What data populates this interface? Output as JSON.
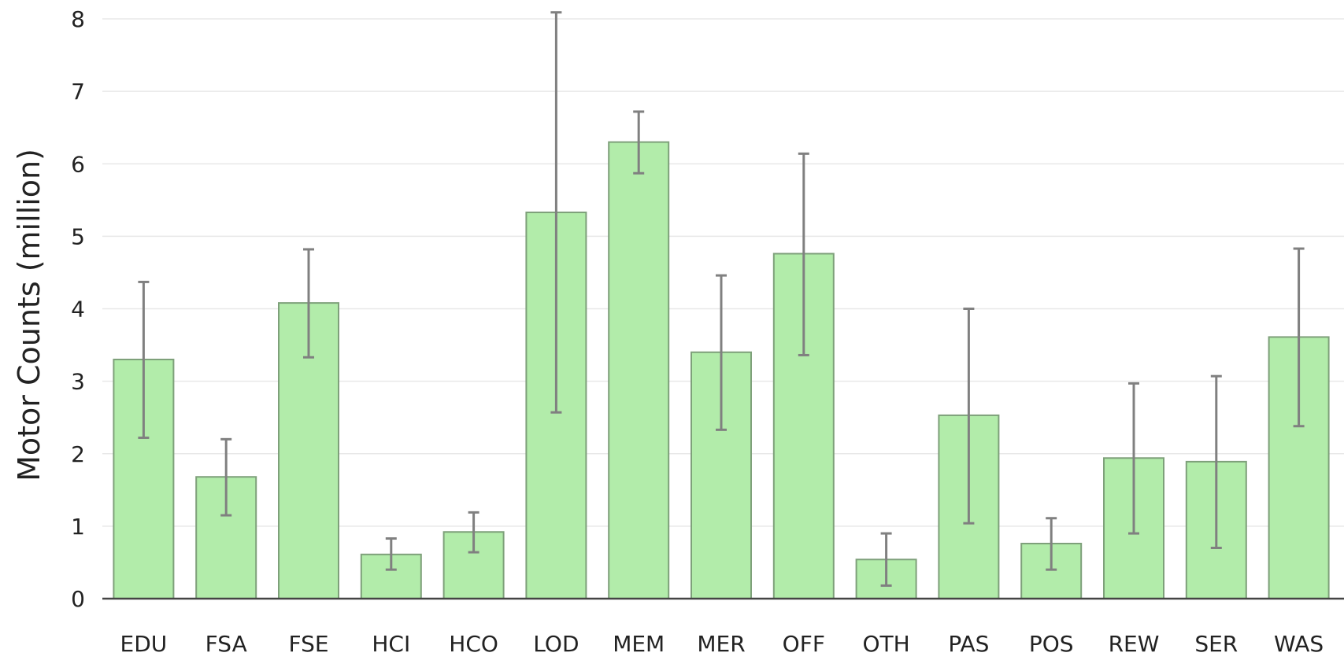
{
  "chart_data": {
    "type": "bar",
    "title": "",
    "xlabel": "",
    "ylabel": "Motor Counts (million)",
    "ylim": [
      0,
      8
    ],
    "yticks": [
      "0",
      "1",
      "2",
      "3",
      "4",
      "5",
      "6",
      "7",
      "8"
    ],
    "grid": true,
    "categories": [
      "EDU",
      "FSA",
      "FSE",
      "HCI",
      "HCO",
      "LOD",
      "MEM",
      "MER",
      "OFF",
      "OTH",
      "PAS",
      "POS",
      "REW",
      "SER",
      "WAS"
    ],
    "values": [
      3.3,
      1.68,
      4.08,
      0.61,
      0.92,
      5.33,
      6.3,
      3.4,
      4.76,
      0.54,
      2.53,
      0.76,
      1.94,
      1.89,
      3.61
    ],
    "error_low": [
      2.22,
      1.15,
      3.33,
      0.4,
      0.64,
      2.57,
      5.87,
      2.33,
      3.36,
      0.18,
      1.04,
      0.4,
      0.9,
      0.7,
      2.38
    ],
    "error_high": [
      4.37,
      2.2,
      4.82,
      0.83,
      1.19,
      8.09,
      6.72,
      4.46,
      6.14,
      0.9,
      4.0,
      1.11,
      2.97,
      3.07,
      4.83
    ],
    "colors": {
      "bar_fill": "#b2ecaa",
      "bar_stroke": "#7ea07a",
      "error_bar": "#808080",
      "grid": "#e8e8e8"
    }
  }
}
